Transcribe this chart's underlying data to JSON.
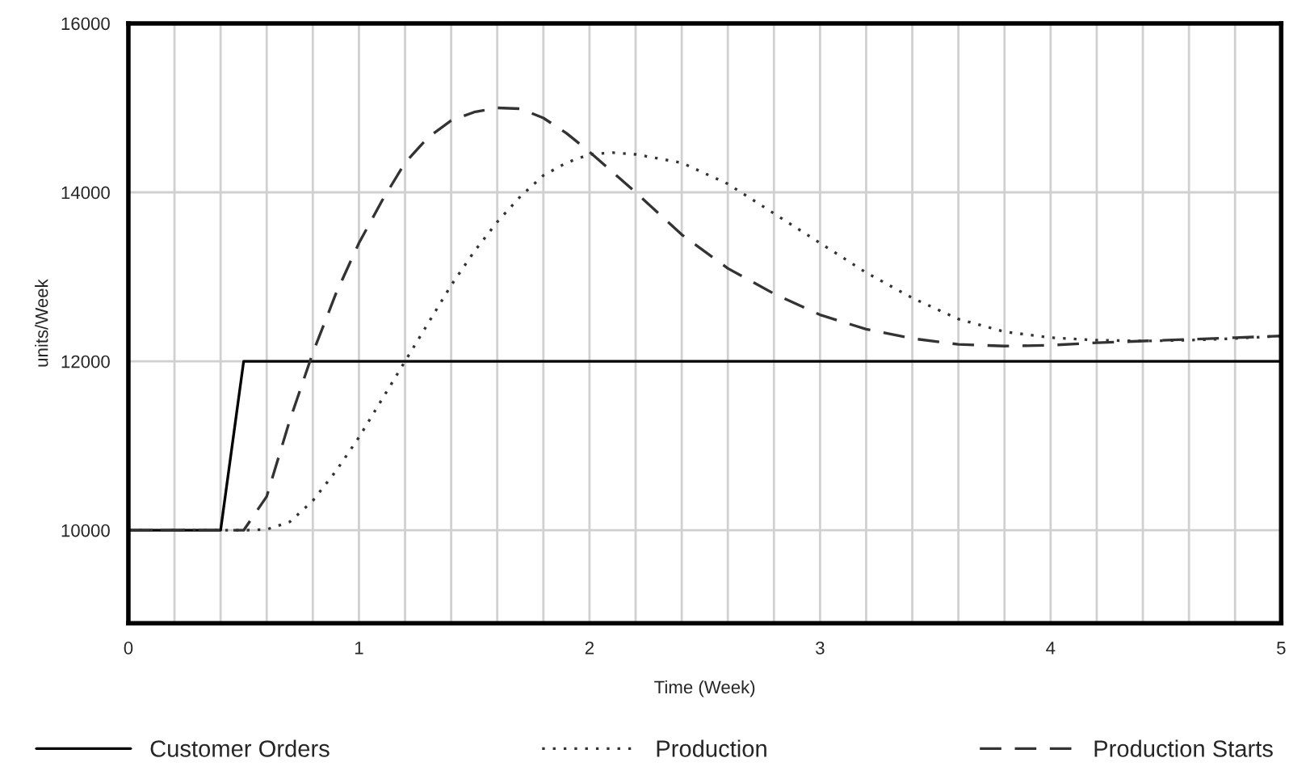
{
  "chart_data": {
    "type": "line",
    "xlabel": "Time (Week)",
    "ylabel": "units/Week",
    "xlim": [
      0,
      5
    ],
    "ylim": [
      8900,
      16000
    ],
    "xticks": [
      0,
      {
        "value": 0.2,
        "label": null
      },
      {
        "value": 0.4,
        "label": null
      },
      {
        "value": 0.6,
        "label": null
      },
      {
        "value": 0.8,
        "label": null
      },
      1,
      {
        "value": 1.2,
        "label": null
      },
      {
        "value": 1.4,
        "label": null
      },
      {
        "value": 1.6,
        "label": null
      },
      {
        "value": 1.8,
        "label": null
      },
      2,
      {
        "value": 2.2,
        "label": null
      },
      {
        "value": 2.4,
        "label": null
      },
      {
        "value": 2.6,
        "label": null
      },
      {
        "value": 2.8,
        "label": null
      },
      3,
      {
        "value": 3.2,
        "label": null
      },
      {
        "value": 3.4,
        "label": null
      },
      {
        "value": 3.6,
        "label": null
      },
      {
        "value": 3.8,
        "label": null
      },
      4,
      {
        "value": 4.2,
        "label": null
      },
      {
        "value": 4.4,
        "label": null
      },
      {
        "value": 4.6,
        "label": null
      },
      {
        "value": 4.8,
        "label": null
      },
      5
    ],
    "yticks": [
      10000,
      12000,
      14000,
      16000
    ],
    "grid": true,
    "legend": "bottom",
    "series": [
      {
        "name": "Customer Orders",
        "color": "#000000",
        "line_style": "solid",
        "x": [
          0,
          0.4,
          0.5,
          5
        ],
        "values": [
          10000,
          10000,
          12000,
          12000
        ]
      },
      {
        "name": "Production",
        "color": "#333333",
        "line_style": "dotted",
        "x": [
          0,
          0.5,
          0.6,
          0.7,
          0.8,
          0.9,
          1.0,
          1.1,
          1.2,
          1.3,
          1.4,
          1.5,
          1.6,
          1.7,
          1.8,
          1.9,
          2.0,
          2.1,
          2.2,
          2.4,
          2.6,
          2.8,
          3.0,
          3.2,
          3.4,
          3.6,
          3.8,
          4.0,
          4.2,
          4.4,
          4.6,
          4.8,
          5.0
        ],
        "values": [
          10000,
          10000,
          10010,
          10100,
          10350,
          10700,
          11100,
          11550,
          12000,
          12450,
          12900,
          13300,
          13650,
          13950,
          14200,
          14350,
          14450,
          14470,
          14450,
          14350,
          14100,
          13750,
          13400,
          13050,
          12750,
          12500,
          12350,
          12280,
          12250,
          12240,
          12250,
          12270,
          12300
        ]
      },
      {
        "name": "Production Starts",
        "color": "#333333",
        "line_style": "dashed",
        "x": [
          0,
          0.5,
          0.6,
          0.7,
          0.8,
          0.9,
          1.0,
          1.1,
          1.2,
          1.3,
          1.4,
          1.5,
          1.6,
          1.7,
          1.8,
          1.9,
          2.0,
          2.2,
          2.4,
          2.6,
          2.8,
          3.0,
          3.2,
          3.4,
          3.6,
          3.8,
          4.0,
          4.2,
          4.4,
          4.6,
          4.8,
          5.0
        ],
        "values": [
          10000,
          10000,
          10400,
          11300,
          12100,
          12800,
          13400,
          13900,
          14350,
          14650,
          14850,
          14950,
          15000,
          14990,
          14880,
          14700,
          14480,
          14000,
          13500,
          13100,
          12800,
          12550,
          12380,
          12270,
          12200,
          12180,
          12190,
          12220,
          12240,
          12260,
          12280,
          12300
        ]
      }
    ]
  }
}
